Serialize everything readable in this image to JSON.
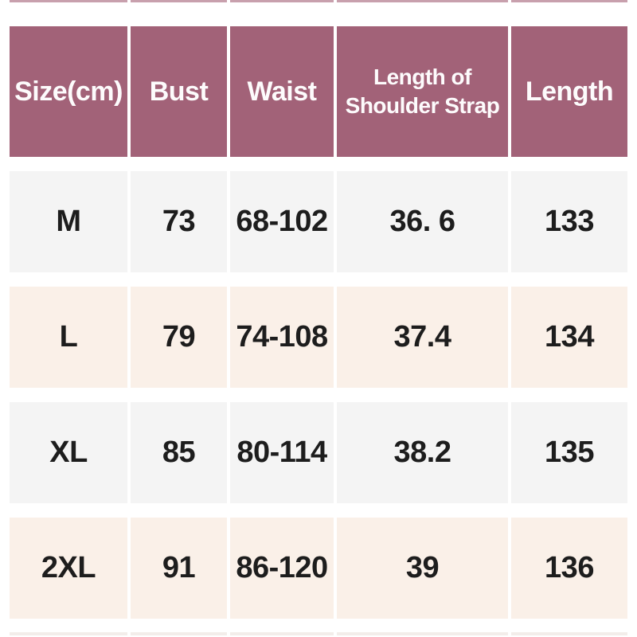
{
  "table": {
    "title": "size-chart",
    "headers": [
      "Size(cm)",
      "Bust",
      "Waist",
      "Length of\nShoulder Strap",
      "Length"
    ],
    "rows": [
      {
        "size": "M",
        "bust": "73",
        "waist": "68-102",
        "strap": "36. 6",
        "length": "133"
      },
      {
        "size": "L",
        "bust": "79",
        "waist": "74-108",
        "strap": "37.4",
        "length": "134"
      },
      {
        "size": "XL",
        "bust": "85",
        "waist": "80-114",
        "strap": "38.2",
        "length": "135"
      },
      {
        "size": "2XL",
        "bust": "91",
        "waist": "86-120",
        "strap": "39",
        "length": "136"
      }
    ]
  },
  "colors": {
    "header_bg": "#a26278",
    "header_text": "#ffffff",
    "row_gray_bg": "#f4f4f4",
    "row_cream_bg": "#faf0e8",
    "body_text": "#1d1d1d",
    "page_bg": "#ffffff"
  }
}
